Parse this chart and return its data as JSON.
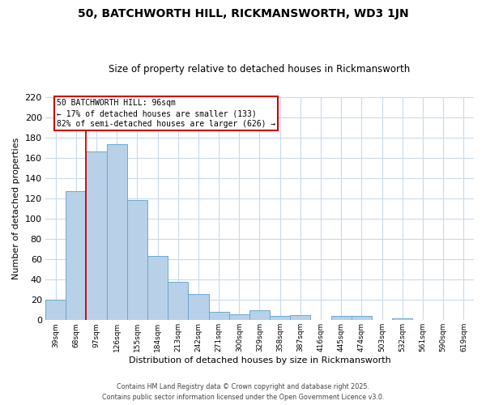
{
  "title": "50, BATCHWORTH HILL, RICKMANSWORTH, WD3 1JN",
  "subtitle": "Size of property relative to detached houses in Rickmansworth",
  "xlabel": "Distribution of detached houses by size in Rickmansworth",
  "ylabel": "Number of detached properties",
  "bar_values": [
    20,
    127,
    166,
    173,
    118,
    63,
    38,
    26,
    8,
    6,
    10,
    4,
    5,
    0,
    4,
    4,
    0,
    2,
    0,
    0,
    0
  ],
  "bar_labels": [
    "39sqm",
    "68sqm",
    "97sqm",
    "126sqm",
    "155sqm",
    "184sqm",
    "213sqm",
    "242sqm",
    "271sqm",
    "300sqm",
    "329sqm",
    "358sqm",
    "387sqm",
    "416sqm",
    "445sqm",
    "474sqm",
    "503sqm",
    "532sqm",
    "561sqm",
    "590sqm",
    "619sqm"
  ],
  "bar_color": "#b8d0e8",
  "bar_edge_color": "#6aaad4",
  "annotation_line_color": "#cc0000",
  "annotation_box_edge_color": "#cc0000",
  "annotation_box_text_line1": "50 BATCHWORTH HILL: 96sqm",
  "annotation_box_text_line2": "← 17% of detached houses are smaller (133)",
  "annotation_box_text_line3": "82% of semi-detached houses are larger (626) →",
  "ylim": [
    0,
    220
  ],
  "yticks": [
    0,
    20,
    40,
    60,
    80,
    100,
    120,
    140,
    160,
    180,
    200,
    220
  ],
  "background_color": "#ffffff",
  "grid_color": "#c8daea",
  "footer_line1": "Contains HM Land Registry data © Crown copyright and database right 2025.",
  "footer_line2": "Contains public sector information licensed under the Open Government Licence v3.0."
}
